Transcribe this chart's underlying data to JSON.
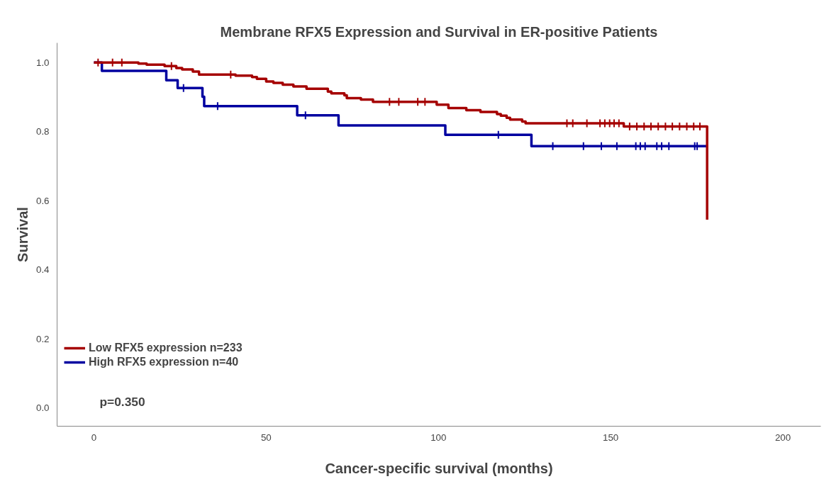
{
  "chart_data": {
    "type": "step",
    "title": "Membrane RFX5 Expression and Survival in ER-positive Patients",
    "xlabel": "Cancer-specific survival (months)",
    "ylabel": "Survival",
    "xlim": [
      -10.7,
      211
    ],
    "ylim": [
      -0.053,
      1.057
    ],
    "xticks": [
      0,
      50,
      100,
      150,
      200
    ],
    "yticks": [
      {
        "value": 0,
        "label": "0.0"
      },
      {
        "value": 0.2,
        "label": "0.2"
      },
      {
        "value": 0.4,
        "label": "0.4"
      },
      {
        "value": 0.6,
        "label": "0.6"
      },
      {
        "value": 0.8,
        "label": "0.8"
      },
      {
        "value": 1,
        "label": "1.0"
      }
    ],
    "grid": false,
    "legend": "bottom left",
    "line_style": "solid",
    "annotations": [
      "p=0.350"
    ],
    "series": [
      {
        "name": "Low RFX5 expression n=233",
        "color": "#a50000",
        "x": [
          0,
          12.9,
          15.3,
          20.5,
          23.9,
          25.6,
          28.7,
          30.5,
          41.1,
          45.9,
          47.3,
          50.0,
          52.1,
          54.8,
          57.9,
          61.7,
          67.9,
          68.9,
          72.7,
          73.4,
          77.5,
          81.0,
          99.5,
          102.9,
          108.1,
          112.2,
          117.0,
          118.1,
          119.8,
          120.8,
          124.3,
          125.3,
          153.8,
          178
        ],
        "values": [
          1.0,
          0.997,
          0.994,
          0.99,
          0.984,
          0.98,
          0.974,
          0.965,
          0.962,
          0.958,
          0.953,
          0.945,
          0.941,
          0.936,
          0.931,
          0.924,
          0.916,
          0.911,
          0.905,
          0.897,
          0.893,
          0.886,
          0.878,
          0.868,
          0.862,
          0.857,
          0.851,
          0.846,
          0.84,
          0.835,
          0.829,
          0.824,
          0.815,
          0.545
        ]
      },
      {
        "name": "High RFX5 expression n=40",
        "color": "#0000a0",
        "x": [
          0,
          2.3,
          21,
          24.3,
          31.5,
          32,
          59,
          71,
          102,
          127,
          178
        ],
        "values": [
          1.0,
          0.976,
          0.949,
          0.926,
          0.901,
          0.874,
          0.847,
          0.818,
          0.791,
          0.758,
          0.758
        ]
      },
      {
        "type": "scatter",
        "marker": "cross",
        "color": "#a50000",
        "x": [
          1.2,
          5.4,
          8.1,
          22.5,
          39.7,
          85.8,
          88.5,
          94.0,
          96.1,
          137.3,
          139.0,
          143.1,
          146.9,
          148.3,
          149.7,
          151.0,
          152.4,
          155.5,
          157.6,
          159.7,
          161.7,
          163.8,
          165.9,
          167.9,
          170.0,
          172.1,
          174.1,
          175.9
        ],
        "values": [
          1.0,
          1.0,
          1.0,
          0.99,
          0.965,
          0.886,
          0.886,
          0.886,
          0.886,
          0.824,
          0.824,
          0.824,
          0.824,
          0.824,
          0.824,
          0.824,
          0.824,
          0.815,
          0.815,
          0.815,
          0.815,
          0.815,
          0.815,
          0.815,
          0.815,
          0.815,
          0.815,
          0.815
        ]
      },
      {
        "type": "scatter",
        "marker": "cross",
        "color": "#0000a0",
        "x": [
          26.0,
          35.9,
          61.4,
          117.4,
          133.2,
          142.1,
          147.3,
          151.8,
          157.3,
          158.6,
          160.0,
          163.4,
          164.8,
          166.9,
          174.4,
          175.1
        ],
        "values": [
          0.926,
          0.874,
          0.847,
          0.791,
          0.758,
          0.758,
          0.758,
          0.758,
          0.758,
          0.758,
          0.758,
          0.758,
          0.758,
          0.758,
          0.758,
          0.758
        ]
      }
    ]
  }
}
